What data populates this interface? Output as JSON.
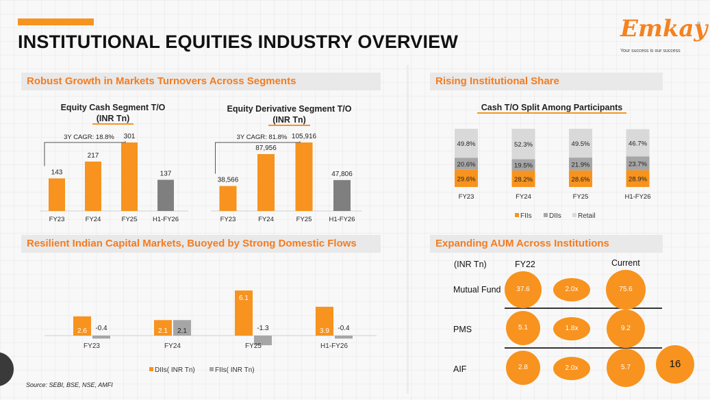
{
  "page": {
    "title": "INSTITUTIONAL EQUITIES INDUSTRY OVERVIEW",
    "logo_text": "Emkay",
    "logo_reg": "®",
    "logo_tagline": "Your success is our success",
    "source": "Source: SEBI, BSE, NSE, AMFI",
    "page_number": "16"
  },
  "colors": {
    "accent": "#f7931e",
    "grey": "#7f7f7f",
    "light_grey": "#a6a6a6",
    "retail": "#d9d9d9",
    "header_text": "#f47b20"
  },
  "sections": {
    "turnover": "Robust Growth in Markets Turnovers Across Segments",
    "institutional": "Rising Institutional Share",
    "flows": "Resilient Indian Capital Markets, Buoyed by Strong Domestic Flows",
    "aum": "Expanding AUM Across Institutions"
  },
  "chart_data": [
    {
      "id": "cash",
      "type": "bar",
      "title_line1": "Equity Cash Segment T/O",
      "title_line2": "(INR Tn)",
      "categories": [
        "FY23",
        "FY24",
        "FY25",
        "H1-FY26"
      ],
      "values": [
        143,
        217,
        301,
        137
      ],
      "labels": [
        "143",
        "217",
        "301",
        "137"
      ],
      "colors": [
        "#f7931e",
        "#f7931e",
        "#f7931e",
        "#7f7f7f"
      ],
      "annotation": "3Y CAGR: 18.8%",
      "ylim": [
        0,
        301
      ]
    },
    {
      "id": "deriv",
      "type": "bar",
      "title_line1": "Equity Derivative Segment T/O",
      "title_line2": "(INR Tn)",
      "categories": [
        "FY23",
        "FY24",
        "FY25",
        "H1-FY26"
      ],
      "values": [
        38566,
        87956,
        105916,
        47806
      ],
      "labels": [
        "38,566",
        "87,956",
        "105,916",
        "47,806"
      ],
      "colors": [
        "#f7931e",
        "#f7931e",
        "#f7931e",
        "#7f7f7f"
      ],
      "annotation": "3Y CAGR: 81.8%",
      "ylim": [
        0,
        105916
      ]
    },
    {
      "id": "split",
      "type": "bar",
      "stacked": true,
      "title": "Cash T/O Split Among Participants",
      "categories": [
        "FY23",
        "FY24",
        "FY25",
        "H1-FY26"
      ],
      "series": [
        {
          "name": "FIIs",
          "color": "#f7931e",
          "values": [
            29.6,
            28.2,
            28.6,
            28.9
          ],
          "labels": [
            "29.6%",
            "28.2%",
            "28.6%",
            "28.9%"
          ]
        },
        {
          "name": "DIIs",
          "color": "#a6a6a6",
          "values": [
            20.6,
            19.5,
            21.9,
            23.7
          ],
          "labels": [
            "20.6%",
            "19.5%",
            "21.9%",
            "23.7%"
          ]
        },
        {
          "name": "Retail",
          "color": "#d9d9d9",
          "values": [
            49.8,
            52.3,
            49.5,
            46.7
          ],
          "labels": [
            "49.8%",
            "52.3%",
            "49.5%",
            "46.7%"
          ]
        }
      ],
      "ylim": [
        0,
        100
      ]
    },
    {
      "id": "flows",
      "type": "bar",
      "categories": [
        "FY23",
        "FY24",
        "FY25",
        "H1-FY26"
      ],
      "series": [
        {
          "name": "DIIs( INR Tn)",
          "color": "#f7931e",
          "values": [
            2.6,
            2.1,
            6.1,
            3.9
          ],
          "labels": [
            "2.6",
            "2.1",
            "6.1",
            "3.9"
          ]
        },
        {
          "name": "FIIs( INR Tn)",
          "color": "#a6a6a6",
          "values": [
            -0.4,
            2.1,
            -1.3,
            -0.4
          ],
          "labels": [
            "-0.4",
            "2.1",
            "-1.3",
            "-0.4"
          ]
        }
      ],
      "ylim": [
        -1.3,
        6.1
      ]
    },
    {
      "id": "aum",
      "type": "table",
      "unit_label": "(INR Tn)",
      "col1": "FY22",
      "col3": "Current",
      "rows": [
        {
          "label": "Mutual Fund",
          "fy22": 37.6,
          "fy22_label": "37.6",
          "growth": "2.0x",
          "current": 75.6,
          "current_label": "75.6"
        },
        {
          "label": "PMS",
          "fy22": 5.1,
          "fy22_label": "5.1",
          "growth": "1.8x",
          "current": 9.2,
          "current_label": "9.2"
        },
        {
          "label": "AIF",
          "fy22": 2.8,
          "fy22_label": "2.8",
          "growth": "2.0x",
          "current": 5.7,
          "current_label": "5.7"
        }
      ]
    }
  ]
}
